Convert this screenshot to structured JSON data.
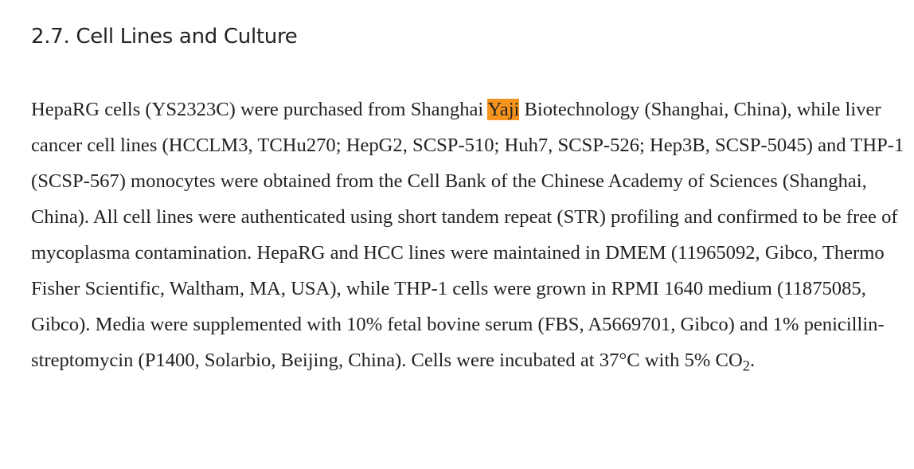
{
  "heading": "2.7. Cell Lines and Culture",
  "paragraph": {
    "before": "HepaRG cells (YS2323C) were purchased from Shanghai ",
    "highlight": "Yaji",
    "after": " Biotechnology (Shanghai, China), while liver cancer cell lines (HCCLM3, TCHu270; HepG2, SCSP-510; Huh7, SCSP-526; Hep3B, SCSP-5045) and THP-1 (SCSP-567) monocytes were obtained from the Cell Bank of the Chinese Academy of Sciences (Shanghai, China). All cell lines were authenticated using short tandem repeat (STR) profiling and confirmed to be free of mycoplasma contamination. HepaRG and HCC lines were maintained in DMEM (11965092, Gibco, Thermo Fisher Scientific, Waltham, MA, USA), while THP-1 cells were grown in RPMI 1640 medium (11875085, Gibco). Media were supplemented with 10% fetal bovine serum (FBS, A5669701, Gibco) and 1% penicillin-streptomycin (P1400, Solarbio, Beijing, China). Cells were incubated at 37°C with 5% CO",
    "subscript": "2",
    "end": "."
  }
}
